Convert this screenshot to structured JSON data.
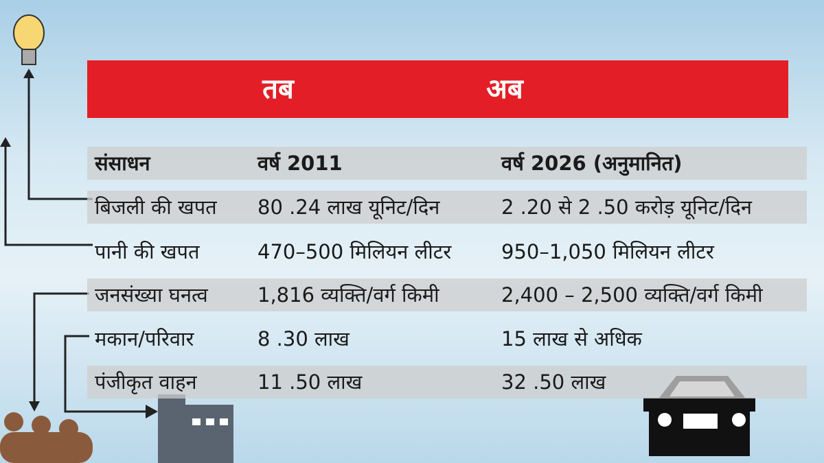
{
  "header": {
    "then": "तब",
    "now": "अब"
  },
  "table": {
    "columns": [
      "संसाधन",
      "वर्ष 2011",
      "वर्ष 2026 (अनुमानित)"
    ],
    "rows": [
      [
        "बिजली की खपत",
        "80 .24 लाख यूनिट/दिन",
        "2 .20 से 2 .50 करोड़ यूनिट/दिन"
      ],
      [
        "पानी की खपत",
        "470–500 मिलियन लीटर",
        "950–1,050 मिलियन लीटर"
      ],
      [
        "जनसंख्या घनत्व",
        "1,816 व्यक्ति/वर्ग किमी",
        "2,400 – 2,500 व्यक्ति/वर्ग किमी"
      ],
      [
        "मकान/परिवार",
        "8 .30 लाख",
        "15 लाख से अधिक"
      ],
      [
        "पंजीकृत वाहन",
        "11 .50 लाख",
        "32 .50 लाख"
      ]
    ]
  }
}
